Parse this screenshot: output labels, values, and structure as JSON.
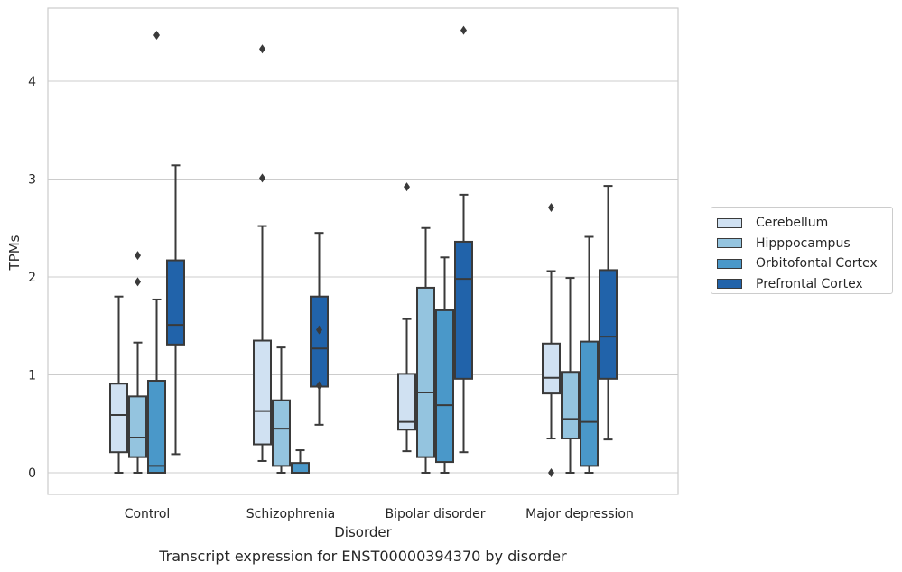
{
  "chart_data": {
    "type": "box",
    "title": "Transcript expression for ENST00000394370 by disorder",
    "xlabel": "Disorder",
    "ylabel": "TPMs",
    "ylim": [
      -0.22,
      4.8
    ],
    "yticks": [
      0,
      1,
      2,
      3,
      4
    ],
    "grid": "horizontal",
    "legend_position": "right",
    "categories": [
      "Control",
      "Schizophrenia",
      "Bipolar disorder",
      "Major depression"
    ],
    "series": [
      {
        "name": "Cerebellum",
        "color": "#d0e1f2",
        "boxes": [
          {
            "whislo": 0.0,
            "q1": 0.21,
            "med": 0.59,
            "q3": 0.91,
            "whishi": 1.8,
            "fliers": []
          },
          {
            "whislo": 0.12,
            "q1": 0.29,
            "med": 0.63,
            "q3": 1.35,
            "whishi": 2.52,
            "fliers": [
              3.01,
              4.33
            ]
          },
          {
            "whislo": 0.22,
            "q1": 0.44,
            "med": 0.52,
            "q3": 1.01,
            "whishi": 1.57,
            "fliers": [
              2.92
            ]
          },
          {
            "whislo": 0.35,
            "q1": 0.81,
            "med": 0.97,
            "q3": 1.32,
            "whishi": 2.06,
            "fliers": [
              0.0,
              2.71
            ]
          }
        ]
      },
      {
        "name": "Hipppocampus",
        "color": "#94c4df",
        "boxes": [
          {
            "whislo": 0.0,
            "q1": 0.16,
            "med": 0.36,
            "q3": 0.78,
            "whishi": 1.33,
            "fliers": [
              1.95,
              2.22
            ]
          },
          {
            "whislo": 0.0,
            "q1": 0.07,
            "med": 0.45,
            "q3": 0.74,
            "whishi": 1.28,
            "fliers": []
          },
          {
            "whislo": 0.0,
            "q1": 0.16,
            "med": 0.82,
            "q3": 1.89,
            "whishi": 2.5,
            "fliers": []
          },
          {
            "whislo": 0.0,
            "q1": 0.35,
            "med": 0.55,
            "q3": 1.03,
            "whishi": 1.99,
            "fliers": []
          }
        ]
      },
      {
        "name": "Orbitofontal Cortex",
        "color": "#4a98c9",
        "boxes": [
          {
            "whislo": 0.0,
            "q1": 0.0,
            "med": 0.07,
            "q3": 0.94,
            "whishi": 1.77,
            "fliers": [
              4.47
            ]
          },
          {
            "whislo": 0.0,
            "q1": 0.0,
            "med": 0.0,
            "q3": 0.1,
            "whishi": 0.23,
            "fliers": []
          },
          {
            "whislo": 0.0,
            "q1": 0.11,
            "med": 0.69,
            "q3": 1.66,
            "whishi": 2.2,
            "fliers": []
          },
          {
            "whislo": 0.0,
            "q1": 0.07,
            "med": 0.52,
            "q3": 1.34,
            "whishi": 2.41,
            "fliers": []
          }
        ]
      },
      {
        "name": "Prefrontal Cortex",
        "color": "#2163aa",
        "boxes": [
          {
            "whislo": 0.19,
            "q1": 1.31,
            "med": 1.51,
            "q3": 2.17,
            "whishi": 3.14,
            "fliers": []
          },
          {
            "whislo": 0.49,
            "q1": 0.88,
            "med": 1.27,
            "q3": 1.8,
            "whishi": 2.45,
            "fliers": [
              0.89,
              1.46
            ]
          },
          {
            "whislo": 0.21,
            "q1": 0.96,
            "med": 1.98,
            "q3": 2.36,
            "whishi": 2.84,
            "fliers": [
              4.52
            ]
          },
          {
            "whislo": 0.34,
            "q1": 0.96,
            "med": 1.39,
            "q3": 2.07,
            "whishi": 2.93,
            "fliers": []
          }
        ]
      }
    ]
  },
  "colors": {
    "grid": "#cccccc",
    "frame": "#cccccc",
    "box_edge": "#3a3a3a",
    "text": "#262626"
  }
}
